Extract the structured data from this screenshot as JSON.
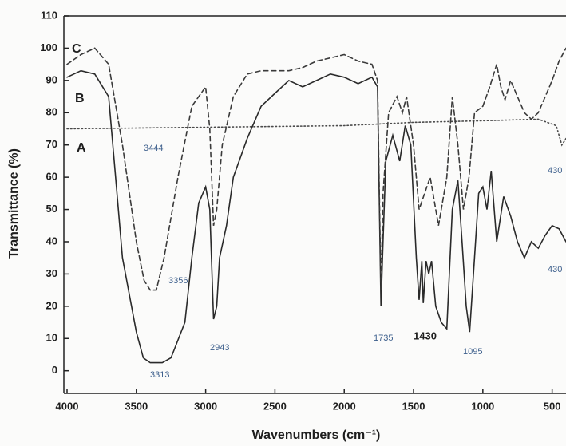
{
  "chart_data": {
    "type": "line",
    "xlabel": "Wavenumbers (cm⁻¹)",
    "ylabel": "Transmittance (%)",
    "xlim": [
      4000,
      400
    ],
    "ylim": [
      -7,
      110
    ],
    "xticks": [
      4000,
      3500,
      3000,
      2500,
      2000,
      1500,
      1000,
      500
    ],
    "yticks": [
      0,
      10,
      20,
      30,
      40,
      50,
      60,
      70,
      80,
      90,
      100,
      110
    ],
    "series": [
      {
        "name": "A",
        "color": "#4a4a4a",
        "style": "dotted",
        "x": [
          4000,
          3000,
          2000,
          1500,
          1000,
          600,
          470,
          430,
          400
        ],
        "values": [
          75,
          75.5,
          76,
          77,
          77.5,
          78,
          76,
          70,
          72
        ]
      },
      {
        "name": "B",
        "color": "#2a2a2a",
        "style": "solid",
        "x": [
          4000,
          3900,
          3800,
          3700,
          3650,
          3600,
          3500,
          3450,
          3400,
          3313,
          3250,
          3150,
          3100,
          3050,
          3000,
          2970,
          2943,
          2920,
          2900,
          2850,
          2800,
          2700,
          2600,
          2500,
          2400,
          2300,
          2200,
          2100,
          2000,
          1900,
          1800,
          1760,
          1735,
          1720,
          1700,
          1650,
          1600,
          1560,
          1520,
          1480,
          1460,
          1440,
          1430,
          1410,
          1390,
          1370,
          1340,
          1300,
          1260,
          1220,
          1180,
          1150,
          1120,
          1095,
          1060,
          1030,
          1000,
          970,
          940,
          900,
          850,
          800,
          750,
          700,
          650,
          600,
          550,
          500,
          450,
          400
        ],
        "values": [
          91,
          93,
          92,
          85,
          60,
          35,
          12,
          4,
          2.5,
          2.5,
          4,
          15,
          35,
          52,
          57,
          50,
          16,
          20,
          35,
          45,
          60,
          72,
          82,
          86,
          90,
          88,
          90,
          92,
          91,
          89,
          91,
          88,
          20,
          40,
          65,
          73,
          65,
          76,
          70,
          35,
          22,
          34,
          21,
          34,
          30,
          34,
          20,
          15,
          13,
          50,
          59,
          40,
          20,
          12,
          35,
          55,
          57,
          50,
          62,
          40,
          54,
          48,
          40,
          35,
          40,
          38,
          42,
          45,
          44,
          40
        ]
      },
      {
        "name": "C",
        "color": "#3a3a3a",
        "style": "dashed",
        "x": [
          4000,
          3900,
          3800,
          3700,
          3600,
          3500,
          3444,
          3400,
          3356,
          3300,
          3200,
          3100,
          3000,
          2970,
          2943,
          2920,
          2880,
          2800,
          2700,
          2600,
          2500,
          2400,
          2300,
          2200,
          2100,
          2000,
          1900,
          1800,
          1760,
          1735,
          1720,
          1680,
          1620,
          1580,
          1550,
          1500,
          1460,
          1420,
          1380,
          1320,
          1260,
          1220,
          1180,
          1140,
          1100,
          1060,
          1000,
          950,
          900,
          870,
          840,
          800,
          750,
          700,
          650,
          600,
          550,
          500,
          450,
          400
        ],
        "values": [
          95,
          98,
          100,
          95,
          70,
          40,
          28,
          25,
          25,
          35,
          60,
          82,
          88,
          75,
          45,
          50,
          70,
          85,
          92,
          93,
          93,
          93,
          94,
          96,
          97,
          98,
          96,
          95,
          90,
          25,
          55,
          80,
          85,
          80,
          85,
          70,
          50,
          55,
          60,
          45,
          60,
          85,
          70,
          50,
          60,
          80,
          82,
          88,
          95,
          88,
          84,
          90,
          85,
          80,
          78,
          80,
          85,
          90,
          96,
          100
        ]
      }
    ],
    "annotations": [
      {
        "text": "3444"
      },
      {
        "text": "3356"
      },
      {
        "text": "3313"
      },
      {
        "text": "2943"
      },
      {
        "text": "1735"
      },
      {
        "text": "1430"
      },
      {
        "text": "1095"
      },
      {
        "text": "430"
      },
      {
        "text": "430"
      }
    ]
  }
}
